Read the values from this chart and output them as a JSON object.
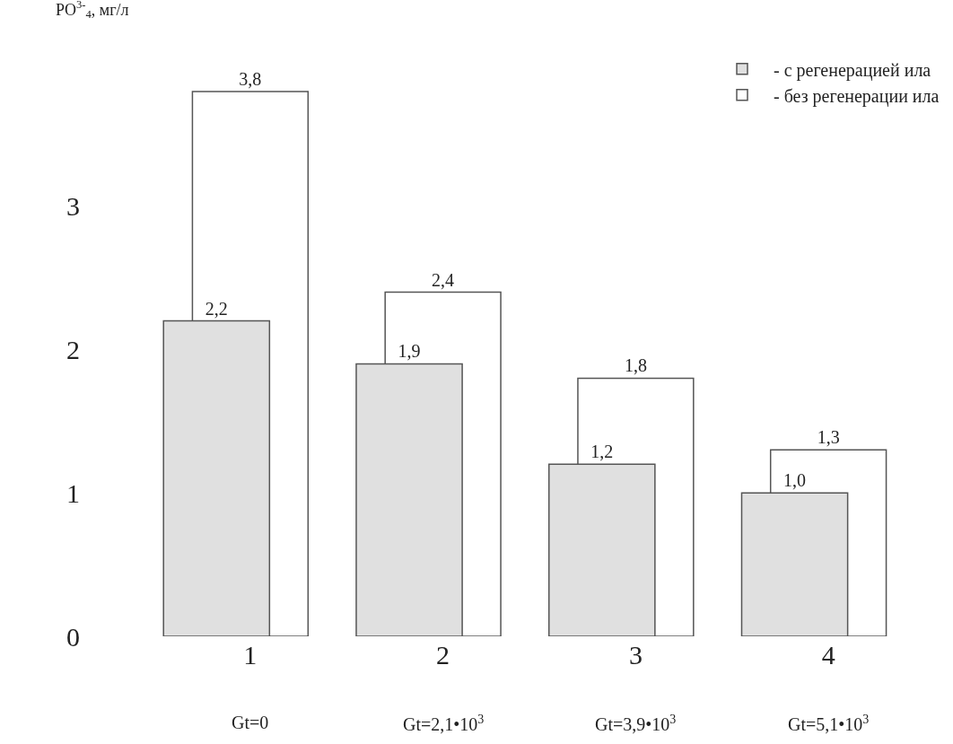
{
  "chart_data": {
    "type": "bar",
    "ylabel": "PO$^{3-}$$_{4}$, мг/л",
    "categories": [
      "1",
      "2",
      "3",
      "4"
    ],
    "series": [
      {
        "name": "- без регенерации ила",
        "color": "#ffffff",
        "values": [
          3.8,
          2.4,
          1.8,
          1.3
        ],
        "value_labels": [
          "3,8",
          "2,4",
          "1,8",
          "1,3"
        ]
      },
      {
        "name": "- с регенерацией ила",
        "color": "#e0e0e0",
        "values": [
          2.2,
          1.9,
          1.2,
          1.0
        ],
        "value_labels": [
          "2,2",
          "1,9",
          "1,2",
          "1,0"
        ]
      }
    ],
    "ylim": [
      0,
      4
    ],
    "yticks": [
      0,
      1,
      2,
      3
    ],
    "grid": false,
    "legend": "top right",
    "annotations": [
      "Gt=0",
      "Gt=2,1•10$^{3}$",
      "Gt=3,9•10$^{3}$",
      "Gt=5,1•10$^{3}$"
    ]
  }
}
